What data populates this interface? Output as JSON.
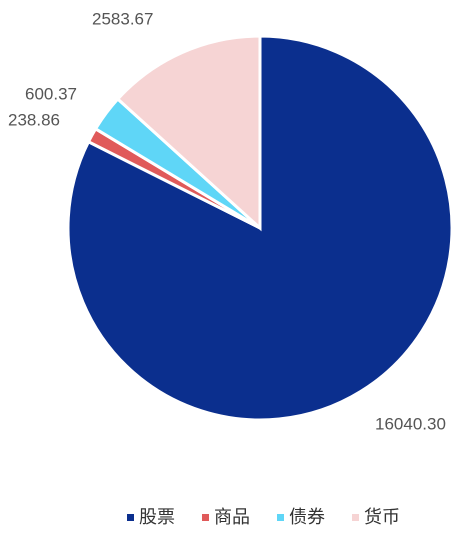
{
  "chart_data": {
    "type": "pie",
    "categories": [
      "股票",
      "商品",
      "债券",
      "货币"
    ],
    "values": [
      16040.3,
      238.86,
      600.37,
      2583.67
    ],
    "value_labels": [
      "16040.30",
      "238.86",
      "600.37",
      "2583.67"
    ],
    "colors": [
      "#0b2f8e",
      "#e05a5a",
      "#5fd6f7",
      "#f6d4d4"
    ],
    "legend": "bottom"
  }
}
